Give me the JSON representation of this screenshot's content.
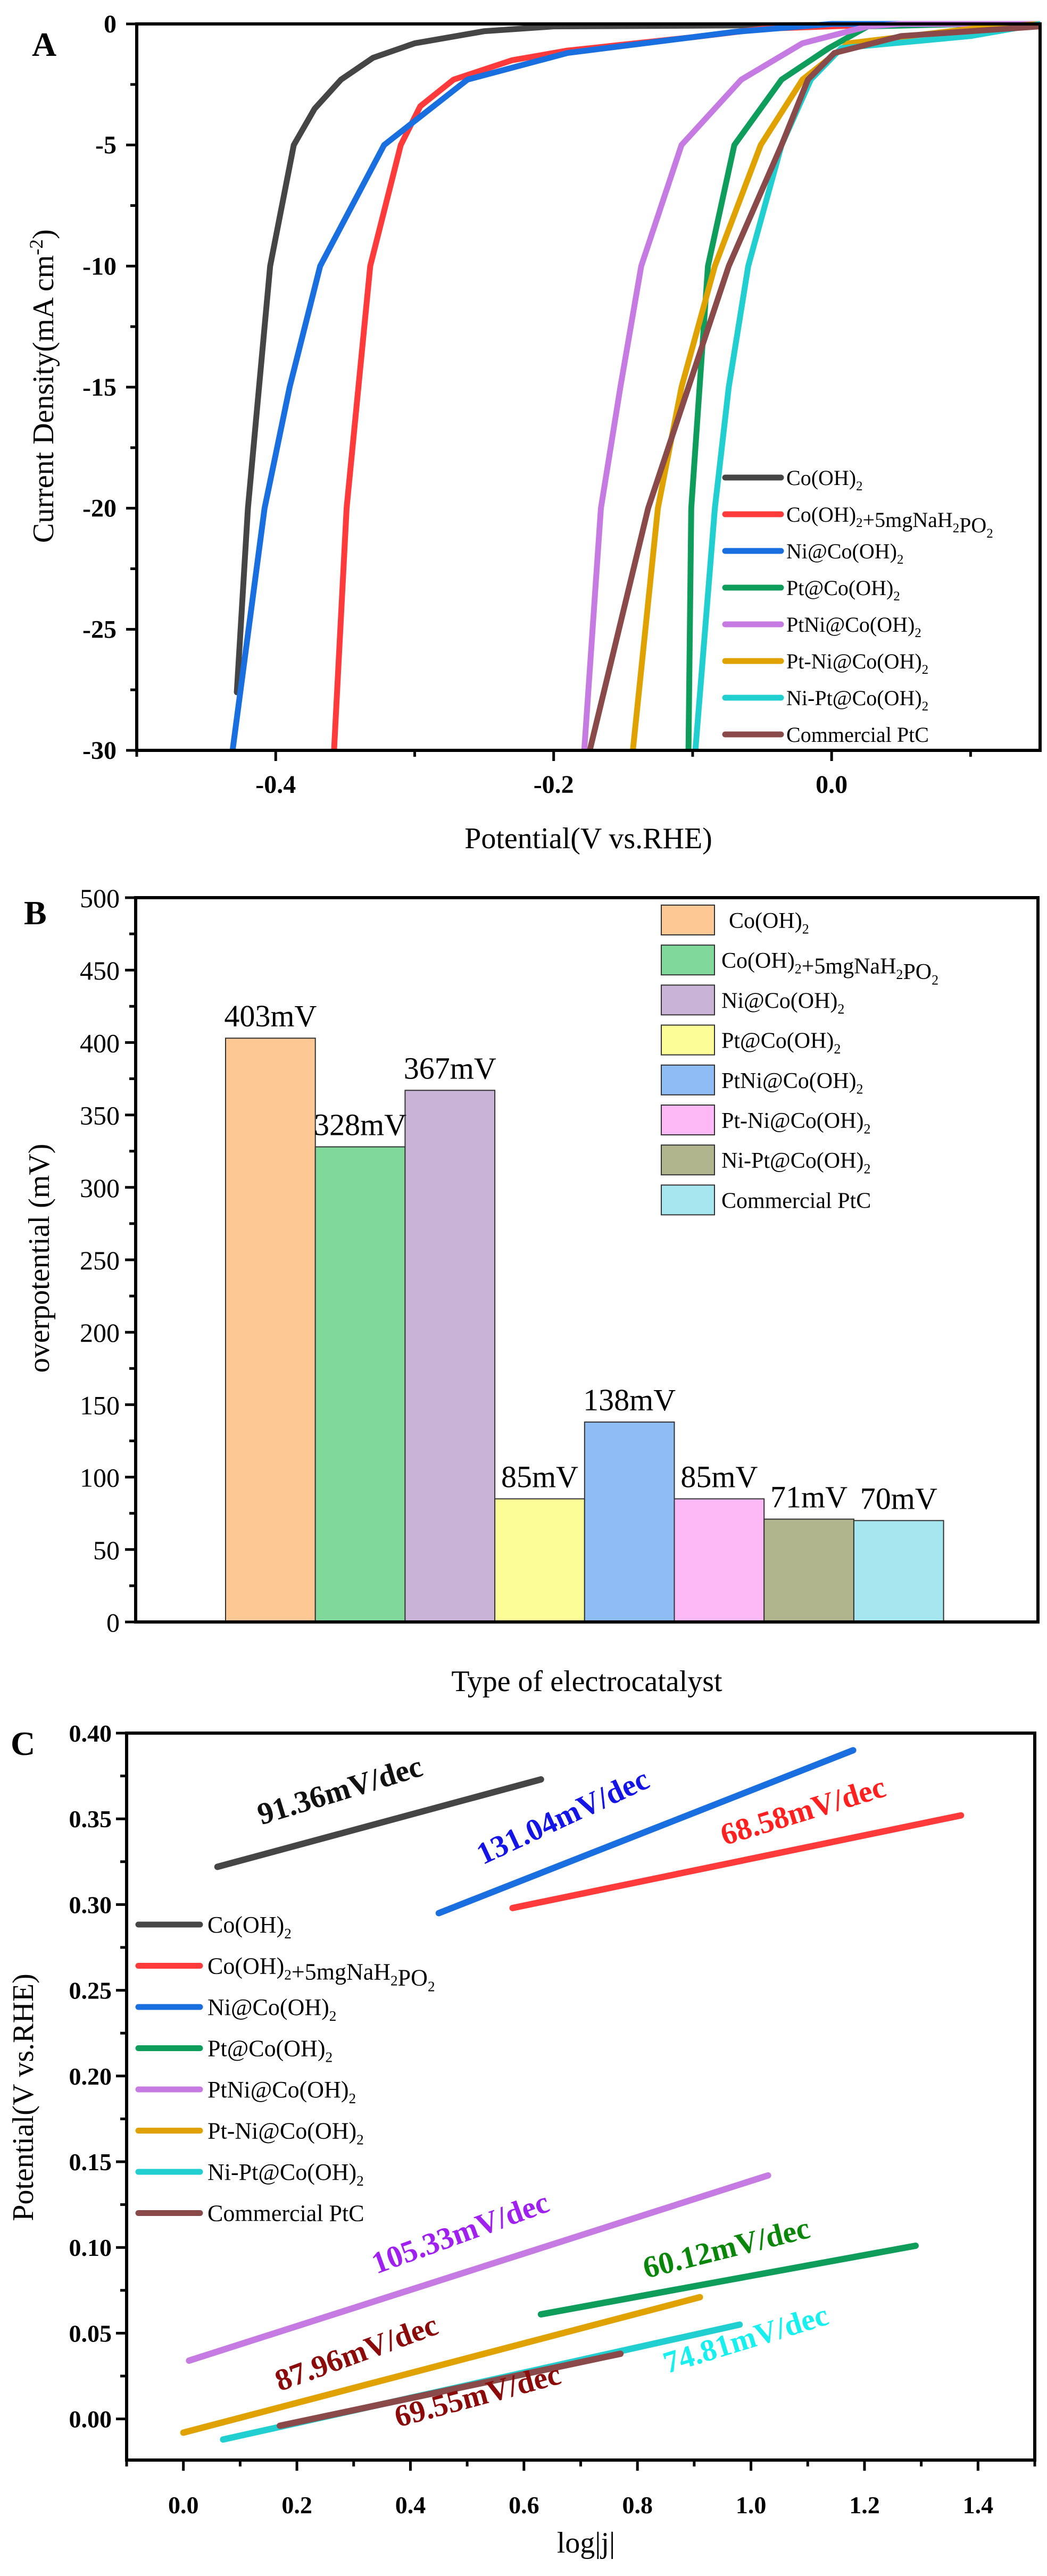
{
  "chart_data": [
    {
      "panel": "A",
      "type": "line",
      "xlabel": "Potential(V vs.RHE)",
      "ylabel": "Current Density(mA cm-2)",
      "xlim": [
        -0.5,
        0.15
      ],
      "ylim": [
        -30,
        0
      ],
      "xticks": [
        "-0.4",
        "-0.2",
        "0.0"
      ],
      "yticks": [
        "0",
        "-5",
        "-10",
        "-15",
        "-20",
        "-25",
        "-30"
      ],
      "legend_position": "bottom-right",
      "series": [
        {
          "name": "Co(OH)2",
          "color": "#454545",
          "points": [
            [
              -0.428,
              -27.6
            ],
            [
              -0.42,
              -20
            ],
            [
              -0.412,
              -15
            ],
            [
              -0.404,
              -10
            ],
            [
              -0.387,
              -5
            ],
            [
              -0.372,
              -3.5
            ],
            [
              -0.353,
              -2.3
            ],
            [
              -0.33,
              -1.4
            ],
            [
              -0.3,
              -0.8
            ],
            [
              -0.25,
              -0.3
            ],
            [
              -0.2,
              -0.1
            ],
            [
              0.15,
              0
            ]
          ]
        },
        {
          "name": "Co(OH)2+5mgNaH2PO2",
          "color": "#ff3a3a",
          "points": [
            [
              -0.358,
              -30
            ],
            [
              -0.349,
              -20
            ],
            [
              -0.332,
              -10
            ],
            [
              -0.31,
              -5
            ],
            [
              -0.296,
              -3.4
            ],
            [
              -0.272,
              -2.3
            ],
            [
              -0.23,
              -1.5
            ],
            [
              -0.19,
              -1.1
            ],
            [
              -0.1,
              -0.55
            ],
            [
              -0.05,
              -0.2
            ],
            [
              0.05,
              0
            ],
            [
              0.15,
              0
            ]
          ]
        },
        {
          "name": "Ni@Co(OH)2",
          "color": "#1a6fe0",
          "points": [
            [
              -0.431,
              -30
            ],
            [
              -0.408,
              -20
            ],
            [
              -0.39,
              -15
            ],
            [
              -0.368,
              -10
            ],
            [
              -0.322,
              -5
            ],
            [
              -0.262,
              -2.3
            ],
            [
              -0.19,
              -1.2
            ],
            [
              -0.07,
              -0.33
            ],
            [
              0.0,
              0
            ],
            [
              0.15,
              0
            ]
          ]
        },
        {
          "name": "Pt@Co(OH)2",
          "color": "#0f9d5c",
          "points": [
            [
              -0.103,
              -30
            ],
            [
              -0.101,
              -20
            ],
            [
              -0.095,
              -15
            ],
            [
              -0.089,
              -10
            ],
            [
              -0.07,
              -5
            ],
            [
              -0.036,
              -2.3
            ],
            [
              -0.002,
              -1
            ],
            [
              0.026,
              -0.1
            ],
            [
              0.1,
              0
            ],
            [
              0.15,
              0
            ]
          ]
        },
        {
          "name": "PtNi@Co(OH)2",
          "color": "#c67be2",
          "points": [
            [
              -0.178,
              -30
            ],
            [
              -0.166,
              -20
            ],
            [
              -0.152,
              -15
            ],
            [
              -0.137,
              -10
            ],
            [
              -0.108,
              -5
            ],
            [
              -0.065,
              -2.3
            ],
            [
              -0.021,
              -0.8
            ],
            [
              0.026,
              -0.1
            ],
            [
              0.05,
              0
            ],
            [
              0.15,
              0
            ]
          ]
        },
        {
          "name": "Pt-Ni@Co(OH)2",
          "color": "#e0a200",
          "points": [
            [
              -0.143,
              -30
            ],
            [
              -0.125,
              -20
            ],
            [
              -0.108,
              -15
            ],
            [
              -0.084,
              -10
            ],
            [
              -0.051,
              -5
            ],
            [
              -0.021,
              -2.3
            ],
            [
              0.012,
              -0.8
            ],
            [
              0.1,
              -0.2
            ],
            [
              0.15,
              0
            ]
          ]
        },
        {
          "name": "Ni-Pt@Co(OH)2",
          "color": "#22cfd0",
          "points": [
            [
              -0.098,
              -30
            ],
            [
              -0.084,
              -20
            ],
            [
              -0.074,
              -15
            ],
            [
              -0.06,
              -10
            ],
            [
              -0.036,
              -5
            ],
            [
              -0.015,
              -2.3
            ],
            [
              0.007,
              -1
            ],
            [
              0.1,
              -0.5
            ],
            [
              0.15,
              0
            ]
          ]
        },
        {
          "name": "Commercial PtC",
          "color": "#8b4a4a",
          "points": [
            [
              -0.174,
              -30
            ],
            [
              -0.132,
              -20
            ],
            [
              -0.103,
              -15
            ],
            [
              -0.074,
              -10
            ],
            [
              -0.036,
              -5
            ],
            [
              -0.017,
              -2.3
            ],
            [
              0.002,
              -1.2
            ],
            [
              0.05,
              -0.5
            ],
            [
              0.15,
              -0.1
            ]
          ]
        }
      ]
    },
    {
      "panel": "B",
      "type": "bar",
      "xlabel": "Type of electrocatalyst",
      "ylabel": "overpotential (mV)",
      "ylim": [
        0,
        500
      ],
      "yticks": [
        "0",
        "50",
        "100",
        "150",
        "200",
        "250",
        "300",
        "350",
        "400",
        "450",
        "500"
      ],
      "legend_position": "top-right",
      "categories": [
        "Co(OH)2",
        "Co(OH)2+5mgNaH2PO2",
        "Ni@Co(OH)2",
        "Pt@Co(OH)2",
        "PtNi@Co(OH)2",
        "Pt-Ni@Co(OH)2",
        "Ni-Pt@Co(OH)2",
        "Commercial PtC"
      ],
      "values": [
        403,
        328,
        367,
        85,
        138,
        85,
        71,
        70
      ],
      "data_labels": [
        "403mV",
        "328mV",
        "367mV",
        "85mV",
        "138mV",
        "85mV",
        "71mV",
        "70mV"
      ],
      "colors": [
        "#fdc894",
        "#80d99b",
        "#c9b3d7",
        "#fdfd98",
        "#8ebdf5",
        "#fdb9f5",
        "#b1b58e",
        "#a6e6ee"
      ]
    },
    {
      "panel": "C",
      "type": "line",
      "xlabel": "log|j|",
      "ylabel": "Potential(V vs.RHE)",
      "xlim": [
        -0.1,
        1.5
      ],
      "ylim": [
        -0.024,
        0.4
      ],
      "xticks": [
        "0.0",
        "0.2",
        "0.4",
        "0.6",
        "0.8",
        "1.0",
        "1.2",
        "1.4"
      ],
      "yticks": [
        "0.00",
        "0.05",
        "0.10",
        "0.15",
        "0.20",
        "0.25",
        "0.30",
        "0.35",
        "0.40"
      ],
      "legend_position": "middle-left",
      "series": [
        {
          "name": "Co(OH)2",
          "color": "#454545",
          "points": [
            [
              0.06,
              0.322
            ],
            [
              0.63,
              0.373
            ]
          ],
          "tafel": "91.36mV/dec",
          "label_color": "#111111"
        },
        {
          "name": "Co(OH)2+5mgNaH2PO2",
          "color": "#ff3a3a",
          "points": [
            [
              0.58,
              0.298
            ],
            [
              1.37,
              0.352
            ]
          ],
          "tafel": "68.58mV/dec",
          "label_color": "#ff2020"
        },
        {
          "name": "Ni@Co(OH)2",
          "color": "#1a6fe0",
          "points": [
            [
              0.45,
              0.295
            ],
            [
              1.18,
              0.39
            ]
          ],
          "tafel": "131.04mV/dec",
          "label_color": "#1414e6"
        },
        {
          "name": "Pt@Co(OH)2",
          "color": "#0f9d5c",
          "points": [
            [
              0.63,
              0.061
            ],
            [
              1.29,
              0.101
            ]
          ],
          "tafel": "60.12mV/dec",
          "label_color": "#0a870a"
        },
        {
          "name": "PtNi@Co(OH)2",
          "color": "#c67be2",
          "points": [
            [
              0.01,
              0.034
            ],
            [
              1.03,
              0.142
            ]
          ],
          "tafel": "105.33mV/dec",
          "label_color": "#a020f0"
        },
        {
          "name": "Pt-Ni@Co(OH)2",
          "color": "#e0a200",
          "points": [
            [
              0.0,
              -0.008
            ],
            [
              0.91,
              0.071
            ]
          ],
          "tafel": "87.96mV/dec",
          "label_color": "#8b0a0a"
        },
        {
          "name": "Ni-Pt@Co(OH)2",
          "color": "#22cfd0",
          "points": [
            [
              0.07,
              -0.012
            ],
            [
              0.98,
              0.055
            ]
          ],
          "tafel": "74.81mV/dec",
          "label_color": "#18f0f0"
        },
        {
          "name": "Commercial PtC",
          "color": "#8b4a4a",
          "points": [
            [
              0.17,
              -0.004
            ],
            [
              0.77,
              0.038
            ]
          ],
          "tafel": "69.55mV/dec",
          "label_color": "#8b0a0a"
        }
      ]
    }
  ],
  "panel_labels": [
    "A",
    "B",
    "C"
  ]
}
